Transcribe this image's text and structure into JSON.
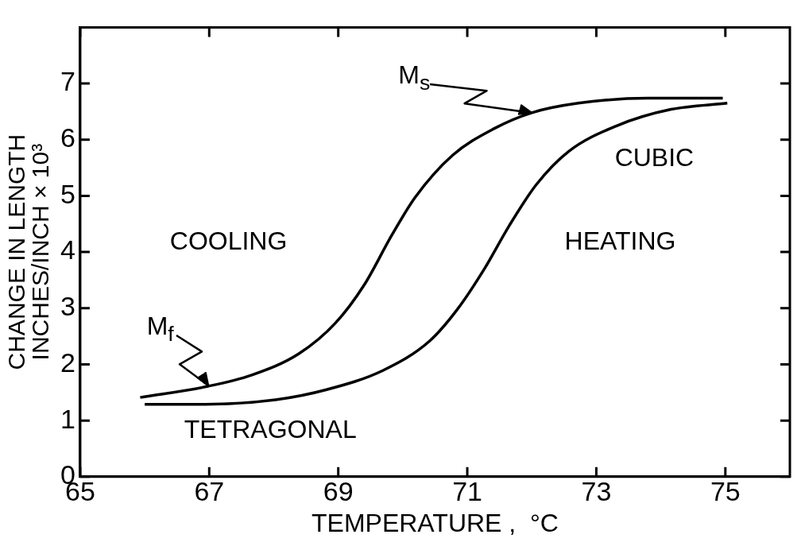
{
  "chart_data": {
    "type": "line",
    "xlabel": "TEMPERATURE ,  °C",
    "ylabel": "CHANGE IN LENGTH\nINCHES/INCH × 10³",
    "xlim": [
      65,
      76
    ],
    "xticks": [
      65,
      67,
      69,
      71,
      73,
      75
    ],
    "ylim": [
      0,
      8
    ],
    "yticks": [
      0,
      1,
      2,
      3,
      4,
      5,
      6,
      7
    ],
    "grid": false,
    "legend": false,
    "marker": "none",
    "line_style": "solid",
    "series": [
      {
        "color": "#000000",
        "x": [
          65.93,
          66.98,
          67.66,
          68.39,
          68.96,
          69.4,
          69.83,
          70.19,
          70.77,
          71.42,
          72.0,
          72.72,
          73.8,
          74.96
        ],
        "values": [
          1.41,
          1.61,
          1.81,
          2.19,
          2.74,
          3.41,
          4.3,
          4.97,
          5.72,
          6.2,
          6.48,
          6.65,
          6.74,
          6.74
        ]
      },
      {
        "color": "#000000",
        "x": [
          66.0,
          66.94,
          68.03,
          68.82,
          69.69,
          70.41,
          70.84,
          71.27,
          71.64,
          72.07,
          72.57,
          73.3,
          74.16,
          75.03
        ],
        "values": [
          1.29,
          1.29,
          1.37,
          1.55,
          1.89,
          2.41,
          2.97,
          3.71,
          4.45,
          5.2,
          5.79,
          6.24,
          6.54,
          6.65
        ]
      }
    ],
    "annotations": [
      "COOLING",
      "HEATING",
      "CUBIC",
      "TETRAGONAL",
      {
        "text": "M$_{s}$",
        "x": 72.0,
        "y": 6.48
      },
      {
        "text": "M$_{f}$",
        "x": 66.98,
        "y": 1.62
      }
    ]
  }
}
